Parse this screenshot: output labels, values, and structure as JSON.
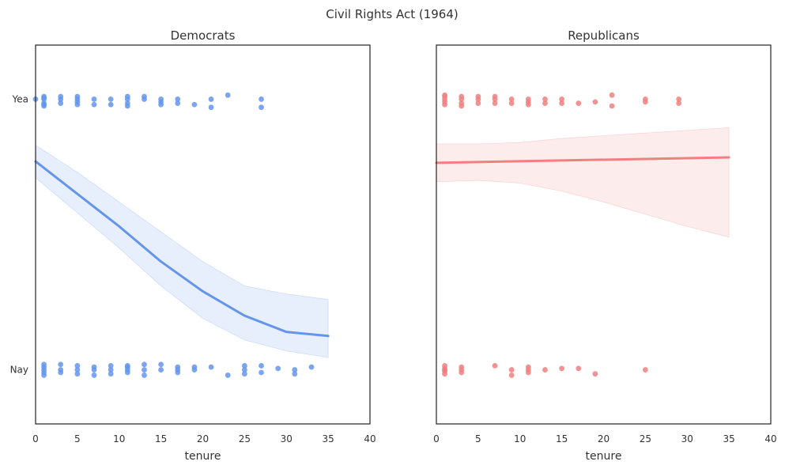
{
  "chart_data": {
    "type": "scatter",
    "title": "Civil Rights Act (1964)",
    "x_label": "tenure",
    "xlim": [
      0,
      40
    ],
    "x_ticks": [
      0,
      5,
      10,
      15,
      20,
      25,
      30,
      35,
      40
    ],
    "ylim": [
      -0.2,
      1.2
    ],
    "y_ticks": [
      {
        "value": 1,
        "label": "Yea"
      },
      {
        "value": 0,
        "label": "Nay"
      }
    ],
    "panels": [
      {
        "title": "Democrats",
        "color": "#6495ED",
        "yea_points": [
          [
            0,
            1.0
          ],
          [
            1,
            1.01
          ],
          [
            1,
            0.98
          ],
          [
            1,
            1.0
          ],
          [
            1,
            0.985
          ],
          [
            1,
            1.005
          ],
          [
            1,
            0.975
          ],
          [
            3,
            1.0
          ],
          [
            3,
            0.985
          ],
          [
            3,
            1.01
          ],
          [
            5,
            1.0
          ],
          [
            5,
            0.98
          ],
          [
            5,
            1.01
          ],
          [
            5,
            0.99
          ],
          [
            7,
            1.0
          ],
          [
            7,
            0.98
          ],
          [
            9,
            1.0
          ],
          [
            9,
            0.98
          ],
          [
            11,
            1.0
          ],
          [
            11,
            0.985
          ],
          [
            11,
            0.975
          ],
          [
            11,
            1.01
          ],
          [
            13,
            1.0
          ],
          [
            13,
            1.01
          ],
          [
            15,
            1.0
          ],
          [
            15,
            0.98
          ],
          [
            15,
            0.99
          ],
          [
            17,
            1.0
          ],
          [
            17,
            0.985
          ],
          [
            19,
            0.98
          ],
          [
            21,
            0.97
          ],
          [
            21,
            1.0
          ],
          [
            23,
            1.015
          ],
          [
            27,
            1.0
          ],
          [
            27,
            0.97
          ]
        ],
        "nay_points": [
          [
            1,
            0.0
          ],
          [
            1,
            0.02
          ],
          [
            1,
            -0.02
          ],
          [
            1,
            0.01
          ],
          [
            1,
            -0.01
          ],
          [
            3,
            0.0
          ],
          [
            3,
            0.02
          ],
          [
            3,
            -0.01
          ],
          [
            5,
            0.0
          ],
          [
            5,
            0.015
          ],
          [
            5,
            -0.015
          ],
          [
            7,
            0.0
          ],
          [
            7,
            0.01
          ],
          [
            7,
            -0.02
          ],
          [
            9,
            0.0
          ],
          [
            9,
            0.015
          ],
          [
            9,
            -0.015
          ],
          [
            11,
            0.0
          ],
          [
            11,
            0.01
          ],
          [
            11,
            -0.01
          ],
          [
            11,
            0.015
          ],
          [
            13,
            0.0
          ],
          [
            13,
            0.02
          ],
          [
            13,
            -0.02
          ],
          [
            15,
            0.0
          ],
          [
            15,
            0.02
          ],
          [
            17,
            0.0
          ],
          [
            17,
            0.01
          ],
          [
            17,
            -0.01
          ],
          [
            19,
            0.0
          ],
          [
            19,
            0.01
          ],
          [
            21,
            0.01
          ],
          [
            23,
            -0.02
          ],
          [
            25,
            0.0
          ],
          [
            25,
            0.015
          ],
          [
            25,
            -0.015
          ],
          [
            27,
            0.015
          ],
          [
            27,
            -0.01
          ],
          [
            29,
            0.005
          ],
          [
            31,
            0.0
          ],
          [
            31,
            -0.015
          ],
          [
            33,
            0.01
          ]
        ],
        "fit": [
          [
            0,
            0.77
          ],
          [
            5,
            0.65
          ],
          [
            10,
            0.53
          ],
          [
            15,
            0.4
          ],
          [
            20,
            0.29
          ],
          [
            25,
            0.2
          ],
          [
            30,
            0.14
          ],
          [
            35,
            0.125
          ]
        ],
        "band_upper": [
          [
            0,
            0.83
          ],
          [
            5,
            0.73
          ],
          [
            10,
            0.62
          ],
          [
            15,
            0.51
          ],
          [
            20,
            0.4
          ],
          [
            25,
            0.31
          ],
          [
            30,
            0.28
          ],
          [
            35,
            0.26
          ]
        ],
        "band_lower": [
          [
            0,
            0.71
          ],
          [
            5,
            0.58
          ],
          [
            10,
            0.45
          ],
          [
            15,
            0.31
          ],
          [
            20,
            0.19
          ],
          [
            25,
            0.11
          ],
          [
            30,
            0.07
          ],
          [
            35,
            0.045
          ]
        ]
      },
      {
        "title": "Republicans",
        "color": "#F08080",
        "yea_points": [
          [
            1,
            1.0
          ],
          [
            1,
            1.01
          ],
          [
            1,
            0.99
          ],
          [
            1,
            0.98
          ],
          [
            1,
            1.015
          ],
          [
            3,
            1.0
          ],
          [
            3,
            0.985
          ],
          [
            3,
            1.01
          ],
          [
            3,
            0.975
          ],
          [
            5,
            1.0
          ],
          [
            5,
            0.985
          ],
          [
            5,
            1.01
          ],
          [
            7,
            1.0
          ],
          [
            7,
            0.985
          ],
          [
            7,
            1.01
          ],
          [
            9,
            1.0
          ],
          [
            9,
            0.985
          ],
          [
            11,
            1.0
          ],
          [
            11,
            0.98
          ],
          [
            11,
            0.99
          ],
          [
            13,
            1.0
          ],
          [
            13,
            0.985
          ],
          [
            15,
            1.0
          ],
          [
            15,
            0.985
          ],
          [
            17,
            0.985
          ],
          [
            19,
            0.99
          ],
          [
            21,
            1.015
          ],
          [
            21,
            0.975
          ],
          [
            25,
            1.0
          ],
          [
            25,
            0.99
          ],
          [
            29,
            1.0
          ],
          [
            29,
            0.985
          ]
        ],
        "nay_points": [
          [
            1,
            0.0
          ],
          [
            1,
            0.015
          ],
          [
            1,
            -0.015
          ],
          [
            1,
            0.005
          ],
          [
            1,
            -0.005
          ],
          [
            3,
            0.0
          ],
          [
            3,
            0.01
          ],
          [
            3,
            -0.01
          ],
          [
            7,
            0.015
          ],
          [
            9,
            0.0
          ],
          [
            9,
            -0.02
          ],
          [
            11,
            0.0
          ],
          [
            11,
            0.01
          ],
          [
            11,
            -0.01
          ],
          [
            13,
            0.0
          ],
          [
            15,
            0.005
          ],
          [
            17,
            0.005
          ],
          [
            19,
            -0.015
          ],
          [
            25,
            0.0
          ]
        ],
        "fit": [
          [
            0,
            0.765
          ],
          [
            35,
            0.785
          ]
        ],
        "band_upper": [
          [
            0,
            0.835
          ],
          [
            5,
            0.835
          ],
          [
            10,
            0.84
          ],
          [
            15,
            0.855
          ],
          [
            20,
            0.865
          ],
          [
            25,
            0.875
          ],
          [
            30,
            0.885
          ],
          [
            35,
            0.895
          ]
        ],
        "band_lower": [
          [
            0,
            0.695
          ],
          [
            5,
            0.7
          ],
          [
            10,
            0.69
          ],
          [
            15,
            0.66
          ],
          [
            20,
            0.62
          ],
          [
            25,
            0.575
          ],
          [
            30,
            0.53
          ],
          [
            35,
            0.49
          ]
        ]
      }
    ]
  }
}
